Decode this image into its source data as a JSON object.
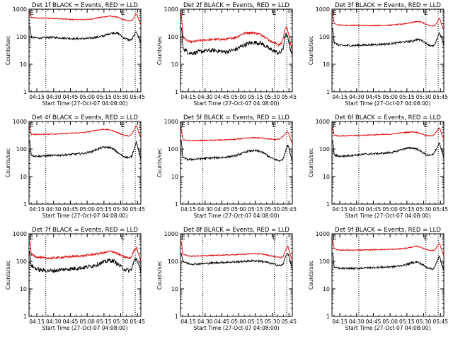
{
  "figure": {
    "x_tick_labels": [
      "04:15",
      "04:30",
      "04:45",
      "05:00",
      "05:15",
      "05:30",
      "05:45"
    ],
    "y_tick_labels": [
      "1",
      "10",
      "100",
      "1000"
    ],
    "xlabel": "Start Time (27-Oct-07 04:08:00)",
    "ylabel": "Counts/sec",
    "marker_E": "E",
    "colors": {
      "events": "#000000",
      "lld": "#e00000"
    }
  },
  "chart_data": [
    {
      "type": "line",
      "title": "Det 1f BLACK = Events, RED = LLD",
      "xlabel": "Start Time (27-Oct-07 04:08:00)",
      "ylabel": "Counts/sec",
      "yscale": "log",
      "ylim": [
        1,
        1000
      ],
      "xlim": [
        "04:08",
        "05:48"
      ],
      "x_ticks": [
        "04:15",
        "04:30",
        "04:45",
        "05:00",
        "05:15",
        "05:30",
        "05:45"
      ],
      "x_minutes": [
        0,
        2,
        6,
        10,
        20,
        30,
        40,
        50,
        56,
        60,
        66,
        72,
        76,
        80,
        84,
        88,
        90,
        92,
        94,
        96,
        98,
        100
      ],
      "vlines_minutes": [
        15,
        84,
        95
      ],
      "series": [
        {
          "name": "Events",
          "color": "#000000",
          "values": [
            320,
            95,
            90,
            90,
            95,
            90,
            85,
            85,
            90,
            95,
            105,
            130,
            140,
            130,
            95,
            80,
            75,
            80,
            110,
            160,
            90,
            60
          ]
        },
        {
          "name": "LLD",
          "color": "#e00000",
          "values": [
            900,
            500,
            480,
            470,
            470,
            440,
            420,
            420,
            440,
            470,
            520,
            560,
            540,
            500,
            420,
            380,
            370,
            390,
            500,
            700,
            420,
            300
          ]
        }
      ]
    },
    {
      "type": "line",
      "title": "Det 2f BLACK = Events, RED = LLD",
      "xlabel": "Start Time (27-Oct-07 04:08:00)",
      "ylabel": "Counts/sec",
      "yscale": "log",
      "ylim": [
        1,
        1000
      ],
      "xlim": [
        "04:08",
        "05:48"
      ],
      "x_ticks": [
        "04:15",
        "04:30",
        "04:45",
        "05:00",
        "05:15",
        "05:30",
        "05:45"
      ],
      "x_minutes": [
        0,
        2,
        6,
        10,
        20,
        30,
        40,
        50,
        56,
        60,
        66,
        72,
        76,
        80,
        84,
        88,
        90,
        92,
        94,
        96,
        98,
        100
      ],
      "vlines_minutes": [
        20,
        84,
        95
      ],
      "series": [
        {
          "name": "Events",
          "color": "#000000",
          "values": [
            320,
            40,
            28,
            25,
            30,
            32,
            28,
            35,
            48,
            55,
            62,
            58,
            45,
            35,
            30,
            25,
            28,
            40,
            120,
            90,
            40,
            20
          ]
        },
        {
          "name": "LLD",
          "color": "#e00000",
          "values": [
            900,
            100,
            70,
            65,
            75,
            80,
            80,
            95,
            130,
            140,
            140,
            120,
            95,
            70,
            60,
            50,
            55,
            90,
            230,
            160,
            60,
            30
          ]
        }
      ]
    },
    {
      "type": "line",
      "title": "Det 3f BLACK = Events, RED = LLD",
      "xlabel": "Start Time (27-Oct-07 04:08:00)",
      "ylabel": "Counts/sec",
      "yscale": "log",
      "ylim": [
        1,
        1000
      ],
      "xlim": [
        "04:08",
        "05:48"
      ],
      "x_ticks": [
        "04:15",
        "04:30",
        "04:45",
        "05:00",
        "05:15",
        "05:30",
        "05:45"
      ],
      "x_minutes": [
        0,
        2,
        6,
        10,
        20,
        30,
        40,
        50,
        56,
        60,
        66,
        72,
        76,
        80,
        84,
        88,
        90,
        92,
        94,
        96,
        98,
        100
      ],
      "vlines_minutes": [
        24,
        84,
        95
      ],
      "series": [
        {
          "name": "Events",
          "color": "#000000",
          "values": [
            250,
            60,
            50,
            48,
            48,
            50,
            52,
            55,
            58,
            62,
            65,
            70,
            80,
            75,
            58,
            48,
            45,
            50,
            80,
            140,
            90,
            50
          ]
        },
        {
          "name": "LLD",
          "color": "#e00000",
          "values": [
            900,
            300,
            270,
            260,
            260,
            255,
            255,
            260,
            270,
            280,
            300,
            330,
            360,
            340,
            280,
            250,
            240,
            250,
            330,
            480,
            280,
            180
          ]
        }
      ]
    },
    {
      "type": "line",
      "title": "Det 4f BLACK = Events, RED = LLD",
      "xlabel": "Start Time (27-Oct-07 04:08:00)",
      "ylabel": "Counts/sec",
      "yscale": "log",
      "ylim": [
        1,
        1000
      ],
      "xlim": [
        "04:08",
        "05:48"
      ],
      "x_ticks": [
        "04:15",
        "04:30",
        "04:45",
        "05:00",
        "05:15",
        "05:30",
        "05:45"
      ],
      "x_minutes": [
        0,
        2,
        6,
        10,
        20,
        30,
        40,
        50,
        56,
        60,
        66,
        72,
        76,
        80,
        84,
        88,
        90,
        92,
        94,
        96,
        98,
        100
      ],
      "vlines_minutes": [
        15,
        84,
        95
      ],
      "series": [
        {
          "name": "Events",
          "color": "#000000",
          "values": [
            250,
            60,
            55,
            55,
            58,
            60,
            65,
            70,
            80,
            95,
            115,
            115,
            95,
            70,
            55,
            50,
            48,
            55,
            100,
            180,
            80,
            40
          ]
        },
        {
          "name": "LLD",
          "color": "#e00000",
          "values": [
            700,
            350,
            340,
            340,
            350,
            360,
            380,
            400,
            440,
            480,
            520,
            500,
            440,
            380,
            330,
            300,
            300,
            340,
            480,
            700,
            400,
            250
          ]
        }
      ]
    },
    {
      "type": "line",
      "title": "Det 5f BLACK = Events, RED = LLD",
      "xlabel": "Start Time (27-Oct-07 04:08:00)",
      "ylabel": "Counts/sec",
      "yscale": "log",
      "ylim": [
        1,
        1000
      ],
      "xlim": [
        "04:08",
        "05:48"
      ],
      "x_ticks": [
        "04:15",
        "04:30",
        "04:45",
        "05:00",
        "05:15",
        "05:30",
        "05:45"
      ],
      "x_minutes": [
        0,
        2,
        6,
        10,
        20,
        30,
        40,
        50,
        56,
        60,
        66,
        72,
        76,
        80,
        84,
        88,
        90,
        92,
        94,
        96,
        98,
        100
      ],
      "vlines_minutes": [
        20,
        84,
        95
      ],
      "series": [
        {
          "name": "Events",
          "color": "#000000",
          "values": [
            250,
            50,
            42,
            42,
            45,
            48,
            50,
            58,
            72,
            82,
            88,
            80,
            65,
            50,
            42,
            38,
            38,
            45,
            90,
            140,
            70,
            35
          ]
        },
        {
          "name": "LLD",
          "color": "#e00000",
          "values": [
            700,
            220,
            200,
            200,
            205,
            210,
            215,
            225,
            240,
            250,
            260,
            250,
            240,
            230,
            220,
            230,
            250,
            300,
            380,
            420,
            250,
            150
          ]
        }
      ]
    },
    {
      "type": "line",
      "title": "Det 6f BLACK = Events, RED = LLD",
      "xlabel": "Start Time (27-Oct-07 04:08:00)",
      "ylabel": "Counts/sec",
      "yscale": "log",
      "ylim": [
        1,
        1000
      ],
      "xlim": [
        "04:08",
        "05:48"
      ],
      "x_ticks": [
        "04:15",
        "04:30",
        "04:45",
        "05:00",
        "05:15",
        "05:30",
        "05:45"
      ],
      "x_minutes": [
        0,
        2,
        6,
        10,
        20,
        30,
        40,
        50,
        56,
        60,
        66,
        72,
        76,
        80,
        84,
        88,
        90,
        92,
        94,
        96,
        98,
        100
      ],
      "vlines_minutes": [
        24,
        84,
        95
      ],
      "series": [
        {
          "name": "Events",
          "color": "#000000",
          "values": [
            250,
            60,
            55,
            55,
            60,
            65,
            68,
            72,
            78,
            90,
            105,
            110,
            100,
            80,
            62,
            58,
            62,
            80,
            110,
            160,
            90,
            50
          ]
        },
        {
          "name": "LLD",
          "color": "#e00000",
          "values": [
            700,
            320,
            300,
            300,
            310,
            320,
            330,
            340,
            360,
            380,
            400,
            420,
            400,
            360,
            310,
            300,
            310,
            360,
            450,
            600,
            350,
            220
          ]
        }
      ]
    },
    {
      "type": "line",
      "title": "Det 7f BLACK = Events, RED = LLD",
      "xlabel": "Start Time (27-Oct-07 04:08:00)",
      "ylabel": "Counts/sec",
      "yscale": "log",
      "ylim": [
        1,
        1000
      ],
      "xlim": [
        "04:08",
        "05:48"
      ],
      "x_ticks": [
        "04:15",
        "04:30",
        "04:45",
        "05:00",
        "05:15",
        "05:30",
        "05:45"
      ],
      "x_minutes": [
        0,
        2,
        6,
        10,
        20,
        30,
        40,
        50,
        56,
        60,
        66,
        72,
        76,
        80,
        84,
        88,
        90,
        92,
        94,
        96,
        98,
        100
      ],
      "vlines_minutes": [
        15,
        84,
        95
      ],
      "series": [
        {
          "name": "Events",
          "color": "#000000",
          "values": [
            250,
            70,
            55,
            48,
            45,
            50,
            55,
            60,
            68,
            75,
            90,
            110,
            100,
            75,
            55,
            48,
            45,
            55,
            100,
            130,
            70,
            40
          ]
        },
        {
          "name": "LLD",
          "color": "#e00000",
          "values": [
            700,
            180,
            150,
            135,
            130,
            140,
            150,
            160,
            175,
            185,
            200,
            230,
            220,
            180,
            150,
            135,
            130,
            150,
            250,
            320,
            180,
            100
          ]
        }
      ]
    },
    {
      "type": "line",
      "title": "Det 8f BLACK = Events, RED = LLD",
      "xlabel": "Start Time (27-Oct-07 04:08:00)",
      "ylabel": "Counts/sec",
      "yscale": "log",
      "ylim": [
        1,
        1000
      ],
      "xlim": [
        "04:08",
        "05:48"
      ],
      "x_ticks": [
        "04:15",
        "04:30",
        "04:45",
        "05:00",
        "05:15",
        "05:30",
        "05:45"
      ],
      "x_minutes": [
        0,
        2,
        6,
        10,
        20,
        30,
        40,
        50,
        56,
        60,
        66,
        72,
        76,
        80,
        84,
        88,
        90,
        92,
        94,
        96,
        98,
        100
      ],
      "vlines_minutes": [
        20,
        84,
        95
      ],
      "series": [
        {
          "name": "Events",
          "color": "#000000",
          "values": [
            250,
            100,
            85,
            80,
            82,
            88,
            92,
            95,
            100,
            102,
            105,
            100,
            95,
            85,
            78,
            72,
            70,
            80,
            150,
            200,
            100,
            50
          ]
        },
        {
          "name": "LLD",
          "color": "#e00000",
          "values": [
            700,
            180,
            160,
            155,
            158,
            165,
            170,
            175,
            180,
            185,
            190,
            185,
            175,
            160,
            150,
            140,
            135,
            150,
            260,
            350,
            180,
            100
          ]
        }
      ]
    },
    {
      "type": "line",
      "title": "Det 9f BLACK = Events, RED = LLD",
      "xlabel": "Start Time (27-Oct-07 04:08:00)",
      "ylabel": "Counts/sec",
      "yscale": "log",
      "ylim": [
        1,
        1000
      ],
      "xlim": [
        "04:08",
        "05:48"
      ],
      "x_ticks": [
        "04:15",
        "04:30",
        "04:45",
        "05:00",
        "05:15",
        "05:30",
        "05:45"
      ],
      "x_minutes": [
        0,
        2,
        6,
        10,
        20,
        30,
        40,
        50,
        56,
        60,
        66,
        72,
        76,
        80,
        84,
        88,
        90,
        92,
        94,
        96,
        98,
        100
      ],
      "vlines_minutes": [
        24,
        84,
        95
      ],
      "series": [
        {
          "name": "Events",
          "color": "#000000",
          "values": [
            250,
            60,
            55,
            55,
            55,
            58,
            60,
            62,
            65,
            68,
            75,
            90,
            95,
            80,
            62,
            55,
            52,
            60,
            100,
            150,
            80,
            45
          ]
        },
        {
          "name": "LLD",
          "color": "#e00000",
          "values": [
            700,
            280,
            260,
            255,
            255,
            260,
            265,
            270,
            275,
            280,
            300,
            330,
            350,
            320,
            270,
            250,
            245,
            260,
            350,
            450,
            260,
            160
          ]
        }
      ]
    }
  ]
}
